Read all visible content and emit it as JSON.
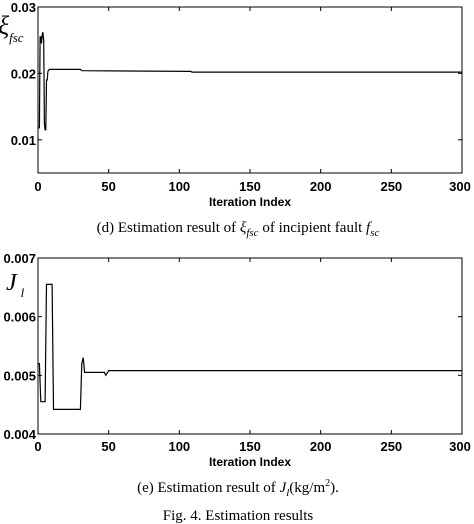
{
  "chart_data": [
    {
      "type": "line",
      "panel": "d",
      "ylabel_main": "ξ",
      "ylabel_sub": "fsc",
      "xlabel": "Iteration Index",
      "xlim": [
        0,
        300
      ],
      "ylim": [
        0.005,
        0.03
      ],
      "x_ticks": [
        "0",
        "50",
        "100",
        "150",
        "200",
        "250",
        "300"
      ],
      "y_ticks": [
        {
          "value": 0.03,
          "label": "0.03"
        },
        {
          "value": 0.02,
          "label": "0.02"
        },
        {
          "value": 0.01,
          "label": "0.01"
        }
      ],
      "grid": false,
      "series": [
        {
          "x": [
            0,
            1,
            1.5,
            2,
            2.5,
            3,
            3.5,
            4,
            4.5,
            5,
            5.5,
            6,
            6.5,
            7,
            8,
            30,
            31,
            108,
            109,
            300
          ],
          "y": [
            0.0118,
            0.0118,
            0.0255,
            0.0255,
            0.0245,
            0.0258,
            0.0262,
            0.025,
            0.0125,
            0.0115,
            0.0115,
            0.019,
            0.019,
            0.0203,
            0.0206,
            0.0206,
            0.0204,
            0.0203,
            0.0202,
            0.0202
          ]
        }
      ],
      "caption": {
        "prefix": "(d) Estimation result of ",
        "symbol": "ξ",
        "symbol_sub": "fsc",
        "middle": " of incipient fault ",
        "fault": "f",
        "fault_sub": "sc"
      }
    },
    {
      "type": "line",
      "panel": "e",
      "ylabel_main": "J",
      "ylabel_sub": "l",
      "xlabel": "Iteration Index",
      "xlim": [
        0,
        300
      ],
      "ylim": [
        0.004,
        0.007
      ],
      "x_ticks": [
        "0",
        "50",
        "100",
        "150",
        "200",
        "250",
        "300"
      ],
      "y_ticks": [
        {
          "value": 0.007,
          "label": "0.007"
        },
        {
          "value": 0.006,
          "label": "0.006"
        },
        {
          "value": 0.005,
          "label": "0.005"
        },
        {
          "value": 0.004,
          "label": "0.004"
        }
      ],
      "grid": false,
      "series": [
        {
          "x": [
            0,
            1,
            2,
            3,
            5,
            6,
            7,
            10,
            11,
            30,
            31,
            32,
            33,
            47,
            48,
            50,
            300
          ],
          "y": [
            0.0052,
            0.0052,
            0.00455,
            0.00455,
            0.00455,
            0.00655,
            0.00655,
            0.00655,
            0.00442,
            0.00442,
            0.0052,
            0.0053,
            0.00505,
            0.00505,
            0.005,
            0.00508,
            0.00508
          ]
        }
      ],
      "caption": {
        "prefix": "(e) Estimation result of ",
        "symbol": "J",
        "symbol_sub": "l",
        "units": "(kg/m",
        "units_sup": "2",
        "units_end": ")."
      }
    }
  ],
  "figure_caption": "Fig. 4. Estimation results"
}
